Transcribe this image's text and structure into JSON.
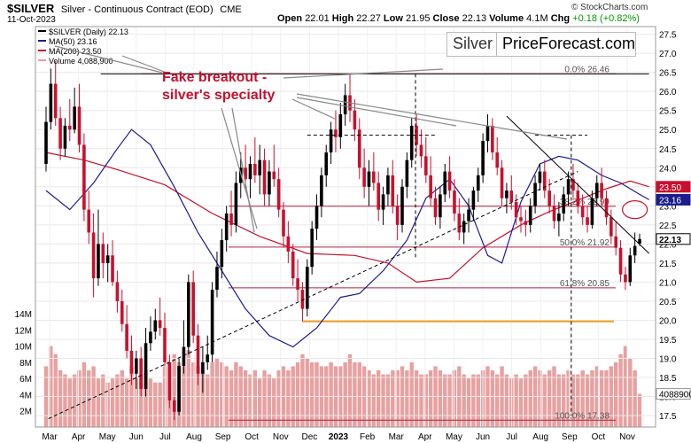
{
  "header": {
    "ticker": "$SILVER",
    "description": "Silver - Continuous Contract (EOD)",
    "exchange": "CME",
    "date": "11-Oct-2023",
    "open_label": "Open",
    "open": "22.01",
    "high_label": "High",
    "high": "22.27",
    "low_label": "Low",
    "low": "21.95",
    "close_label": "Close",
    "close": "22.13",
    "volume_label": "Volume",
    "volume": "4.1M",
    "chg_label": "Chg",
    "chg": "+0.18 (+0.82%)",
    "copyright": "© StockCharts.com"
  },
  "legend": {
    "price": "$SILVER (Daily) 22.13",
    "ma50": "MA(50) 23.16",
    "ma200": "MA(200) 23.50",
    "volume": "Volume 4,088,900"
  },
  "brand": {
    "left": "Silver",
    "right": "PriceForecast.com"
  },
  "annotation": {
    "line1": "Fake breakout -",
    "line2": "silver's specialty"
  },
  "colors": {
    "up": "#000000",
    "down": "#c8102e",
    "ma50": "#1c1c8c",
    "ma200": "#c8102e",
    "volume": "#e8a0a0",
    "annotation": "#c8102e",
    "support": "#f0a020"
  },
  "chart_data": {
    "type": "candlestick",
    "x_tick_labels": [
      "Mar",
      "Apr",
      "May",
      "Jun",
      "Jul",
      "Aug",
      "Sep",
      "Oct",
      "Nov",
      "Dec",
      "2023",
      "Feb",
      "Mar",
      "Apr",
      "May",
      "Jun",
      "Jul",
      "Aug",
      "Sep",
      "Oct",
      "Nov"
    ],
    "y_range": [
      17.2,
      27.7
    ],
    "y_ticks": [
      17.5,
      18.0,
      18.5,
      19.0,
      19.5,
      20.0,
      20.5,
      21.0,
      21.5,
      22.0,
      22.5,
      23.0,
      23.5,
      24.0,
      24.5,
      25.0,
      25.5,
      26.0,
      26.5,
      27.0,
      27.5
    ],
    "volume_ticks": [
      "2M",
      "4M",
      "6M",
      "8M",
      "10M",
      "12M",
      "14M"
    ],
    "last_price": 22.13,
    "price_tags": [
      {
        "label": "23.50",
        "value": 23.5
      },
      {
        "label": "23.16",
        "value": 23.16
      },
      {
        "label": "22.13",
        "value": 22.13
      },
      {
        "label": "4088900",
        "value": 4088900
      }
    ],
    "fib_levels": [
      {
        "label": "0.0% 26.46",
        "value": 26.46
      },
      {
        "label": "38.2% 22.99",
        "value": 22.99
      },
      {
        "label": "50.0% 21.92",
        "value": 21.92
      },
      {
        "label": "61.8% 20.85",
        "value": 20.85
      },
      {
        "label": "100.0% 17.38",
        "value": 17.38
      }
    ],
    "support_line": 19.97,
    "ma50_points": [
      [
        0,
        23.4
      ],
      [
        5,
        22.9
      ],
      [
        10,
        23.6
      ],
      [
        15,
        24.5
      ],
      [
        18,
        25.0
      ],
      [
        22,
        24.6
      ],
      [
        27,
        23.5
      ],
      [
        32,
        22.3
      ],
      [
        37,
        21.3
      ],
      [
        42,
        20.3
      ],
      [
        47,
        19.6
      ],
      [
        52,
        19.3
      ],
      [
        57,
        19.8
      ],
      [
        62,
        20.6
      ],
      [
        66,
        20.7
      ],
      [
        71,
        21.3
      ],
      [
        76,
        22.1
      ],
      [
        80,
        23.2
      ],
      [
        85,
        23.7
      ],
      [
        89,
        23.0
      ],
      [
        93,
        21.7
      ],
      [
        96,
        21.5
      ],
      [
        100,
        23.1
      ],
      [
        104,
        24.1
      ],
      [
        108,
        24.3
      ],
      [
        112,
        24.2
      ],
      [
        117,
        23.8
      ],
      [
        121,
        23.6
      ],
      [
        125,
        23.3
      ],
      [
        127,
        23.16
      ]
    ],
    "ma200_points": [
      [
        0,
        24.4
      ],
      [
        8,
        24.2
      ],
      [
        15,
        23.95
      ],
      [
        25,
        23.55
      ],
      [
        35,
        22.8
      ],
      [
        45,
        22.2
      ],
      [
        55,
        21.75
      ],
      [
        65,
        21.7
      ],
      [
        72,
        21.5
      ],
      [
        78,
        21.0
      ],
      [
        85,
        21.1
      ],
      [
        92,
        21.9
      ],
      [
        100,
        22.5
      ],
      [
        106,
        22.85
      ],
      [
        112,
        23.15
      ],
      [
        118,
        23.45
      ],
      [
        123,
        23.65
      ],
      [
        127,
        23.5
      ]
    ],
    "trend_lines": [
      {
        "points": [
          [
            0.5,
            17.42
          ],
          [
            112,
            23.9
          ]
        ],
        "dashed": true
      },
      {
        "points": [
          [
            97,
            25.35
          ],
          [
            127,
            21.75
          ]
        ],
        "dashed": false
      },
      {
        "points": [
          [
            55,
            24.85
          ],
          [
            82,
            24.85
          ]
        ],
        "dashed": true
      },
      {
        "points": [
          [
            103,
            24.85
          ],
          [
            114,
            24.85
          ]
        ],
        "dashed": true
      },
      {
        "points": [
          [
            11.5,
            26.46
          ],
          [
            127,
            26.46
          ]
        ],
        "dashed": false
      }
    ],
    "vertical_dashed": [
      {
        "x": 77.8,
        "from": 21.6,
        "to": 26.46
      },
      {
        "x": 110.6,
        "from": 17.5,
        "to": 24.85
      }
    ],
    "candles": [
      {
        "o": 24.1,
        "h": 25.6,
        "l": 23.9,
        "c": 25.2,
        "v": 7.5
      },
      {
        "o": 25.2,
        "h": 26.6,
        "l": 25.0,
        "c": 26.2,
        "v": 10
      },
      {
        "o": 26.2,
        "h": 26.8,
        "l": 25.1,
        "c": 25.3,
        "v": 9
      },
      {
        "o": 25.3,
        "h": 25.6,
        "l": 24.2,
        "c": 24.5,
        "v": 7
      },
      {
        "o": 24.5,
        "h": 25.3,
        "l": 24.3,
        "c": 25.1,
        "v": 6.5
      },
      {
        "o": 25.1,
        "h": 25.8,
        "l": 24.7,
        "c": 25.0,
        "v": 6
      },
      {
        "o": 25.0,
        "h": 26.1,
        "l": 24.9,
        "c": 25.6,
        "v": 6.5
      },
      {
        "o": 25.6,
        "h": 26.2,
        "l": 24.4,
        "c": 24.6,
        "v": 7
      },
      {
        "o": 24.6,
        "h": 24.9,
        "l": 22.6,
        "c": 22.9,
        "v": 8
      },
      {
        "o": 22.9,
        "h": 23.4,
        "l": 22.0,
        "c": 22.3,
        "v": 7
      },
      {
        "o": 22.3,
        "h": 22.8,
        "l": 20.6,
        "c": 21.1,
        "v": 7.5
      },
      {
        "o": 21.1,
        "h": 22.9,
        "l": 20.9,
        "c": 22.0,
        "v": 6
      },
      {
        "o": 22.0,
        "h": 22.3,
        "l": 21.1,
        "c": 21.5,
        "v": 6.5
      },
      {
        "o": 21.5,
        "h": 22.0,
        "l": 21.0,
        "c": 21.7,
        "v": 5.5
      },
      {
        "o": 21.7,
        "h": 22.1,
        "l": 20.9,
        "c": 21.0,
        "v": 6
      },
      {
        "o": 21.0,
        "h": 21.3,
        "l": 20.2,
        "c": 20.5,
        "v": 6.5
      },
      {
        "o": 20.5,
        "h": 20.8,
        "l": 19.7,
        "c": 19.9,
        "v": 7
      },
      {
        "o": 19.9,
        "h": 20.4,
        "l": 19.0,
        "c": 19.2,
        "v": 6
      },
      {
        "o": 19.2,
        "h": 19.6,
        "l": 18.3,
        "c": 18.6,
        "v": 7.5
      },
      {
        "o": 18.6,
        "h": 19.2,
        "l": 18.2,
        "c": 19.0,
        "v": 6
      },
      {
        "o": 19.0,
        "h": 19.3,
        "l": 18.0,
        "c": 18.2,
        "v": 6.5
      },
      {
        "o": 18.2,
        "h": 19.8,
        "l": 18.0,
        "c": 19.4,
        "v": 7
      },
      {
        "o": 19.4,
        "h": 20.1,
        "l": 19.2,
        "c": 19.7,
        "v": 6
      },
      {
        "o": 19.7,
        "h": 20.3,
        "l": 19.5,
        "c": 20.0,
        "v": 5.5
      },
      {
        "o": 20.0,
        "h": 20.6,
        "l": 19.6,
        "c": 19.8,
        "v": 5.5
      },
      {
        "o": 19.8,
        "h": 20.2,
        "l": 18.8,
        "c": 18.9,
        "v": 7.5
      },
      {
        "o": 18.9,
        "h": 19.1,
        "l": 17.7,
        "c": 17.9,
        "v": 8
      },
      {
        "o": 17.9,
        "h": 18.0,
        "l": 17.38,
        "c": 17.6,
        "v": 9
      },
      {
        "o": 17.6,
        "h": 19.0,
        "l": 17.5,
        "c": 18.8,
        "v": 8
      },
      {
        "o": 18.8,
        "h": 20.0,
        "l": 18.6,
        "c": 19.3,
        "v": 7.5
      },
      {
        "o": 19.3,
        "h": 21.2,
        "l": 19.1,
        "c": 21.0,
        "v": 9.5
      },
      {
        "o": 21.0,
        "h": 21.3,
        "l": 19.4,
        "c": 19.6,
        "v": 8
      },
      {
        "o": 19.6,
        "h": 19.9,
        "l": 18.3,
        "c": 18.6,
        "v": 7.5
      },
      {
        "o": 18.6,
        "h": 19.3,
        "l": 18.1,
        "c": 18.9,
        "v": 7
      },
      {
        "o": 18.9,
        "h": 19.6,
        "l": 18.7,
        "c": 19.1,
        "v": 6.5
      },
      {
        "o": 19.1,
        "h": 21.0,
        "l": 18.9,
        "c": 20.8,
        "v": 8
      },
      {
        "o": 20.8,
        "h": 21.8,
        "l": 20.6,
        "c": 21.4,
        "v": 8.5
      },
      {
        "o": 21.4,
        "h": 22.4,
        "l": 21.1,
        "c": 22.1,
        "v": 8
      },
      {
        "o": 22.1,
        "h": 23.0,
        "l": 21.8,
        "c": 22.8,
        "v": 7.5
      },
      {
        "o": 22.8,
        "h": 23.4,
        "l": 22.2,
        "c": 22.5,
        "v": 7
      },
      {
        "o": 22.5,
        "h": 23.9,
        "l": 22.3,
        "c": 23.6,
        "v": 8
      },
      {
        "o": 23.6,
        "h": 24.4,
        "l": 23.2,
        "c": 24.0,
        "v": 7.5
      },
      {
        "o": 24.0,
        "h": 24.6,
        "l": 23.4,
        "c": 23.7,
        "v": 7
      },
      {
        "o": 23.7,
        "h": 24.3,
        "l": 23.2,
        "c": 24.1,
        "v": 6.5
      },
      {
        "o": 24.1,
        "h": 24.8,
        "l": 23.6,
        "c": 23.8,
        "v": 7
      },
      {
        "o": 23.8,
        "h": 24.6,
        "l": 23.3,
        "c": 24.2,
        "v": 6
      },
      {
        "o": 24.2,
        "h": 24.5,
        "l": 23.0,
        "c": 23.3,
        "v": 7
      },
      {
        "o": 23.3,
        "h": 24.2,
        "l": 23.0,
        "c": 23.9,
        "v": 6.5
      },
      {
        "o": 23.9,
        "h": 24.6,
        "l": 23.5,
        "c": 23.7,
        "v": 6
      },
      {
        "o": 23.7,
        "h": 24.0,
        "l": 22.7,
        "c": 22.9,
        "v": 7
      },
      {
        "o": 22.9,
        "h": 23.1,
        "l": 21.9,
        "c": 22.2,
        "v": 7.5
      },
      {
        "o": 22.2,
        "h": 22.6,
        "l": 21.5,
        "c": 21.8,
        "v": 7
      },
      {
        "o": 21.8,
        "h": 22.0,
        "l": 20.9,
        "c": 21.1,
        "v": 7.5
      },
      {
        "o": 21.1,
        "h": 21.6,
        "l": 20.5,
        "c": 20.8,
        "v": 8
      },
      {
        "o": 20.8,
        "h": 21.0,
        "l": 19.97,
        "c": 20.3,
        "v": 9
      },
      {
        "o": 20.3,
        "h": 21.6,
        "l": 20.1,
        "c": 21.4,
        "v": 8.5
      },
      {
        "o": 21.4,
        "h": 22.6,
        "l": 21.2,
        "c": 22.4,
        "v": 8
      },
      {
        "o": 22.4,
        "h": 23.3,
        "l": 22.1,
        "c": 23.0,
        "v": 8
      },
      {
        "o": 23.0,
        "h": 24.0,
        "l": 22.7,
        "c": 23.8,
        "v": 7.5
      },
      {
        "o": 23.8,
        "h": 24.6,
        "l": 23.5,
        "c": 24.4,
        "v": 7.5
      },
      {
        "o": 24.4,
        "h": 25.2,
        "l": 24.1,
        "c": 25.0,
        "v": 8
      },
      {
        "o": 25.0,
        "h": 25.5,
        "l": 24.4,
        "c": 24.8,
        "v": 7.5
      },
      {
        "o": 24.8,
        "h": 25.7,
        "l": 24.5,
        "c": 25.4,
        "v": 7.5
      },
      {
        "o": 25.4,
        "h": 26.2,
        "l": 25.1,
        "c": 25.9,
        "v": 8
      },
      {
        "o": 25.9,
        "h": 26.46,
        "l": 25.2,
        "c": 25.5,
        "v": 9
      },
      {
        "o": 25.5,
        "h": 25.8,
        "l": 24.7,
        "c": 25.0,
        "v": 8
      },
      {
        "o": 25.0,
        "h": 25.3,
        "l": 23.7,
        "c": 24.0,
        "v": 8
      },
      {
        "o": 24.0,
        "h": 24.5,
        "l": 23.2,
        "c": 23.5,
        "v": 7.5
      },
      {
        "o": 23.5,
        "h": 24.2,
        "l": 23.0,
        "c": 23.9,
        "v": 7
      },
      {
        "o": 23.9,
        "h": 24.4,
        "l": 23.4,
        "c": 23.6,
        "v": 6.5
      },
      {
        "o": 23.6,
        "h": 23.9,
        "l": 22.6,
        "c": 22.9,
        "v": 7
      },
      {
        "o": 22.9,
        "h": 23.5,
        "l": 22.5,
        "c": 23.3,
        "v": 6.5
      },
      {
        "o": 23.3,
        "h": 24.0,
        "l": 23.0,
        "c": 23.8,
        "v": 6.5
      },
      {
        "o": 23.8,
        "h": 24.2,
        "l": 22.8,
        "c": 23.0,
        "v": 7
      },
      {
        "o": 23.0,
        "h": 23.3,
        "l": 22.1,
        "c": 22.5,
        "v": 7
      },
      {
        "o": 22.5,
        "h": 23.7,
        "l": 22.3,
        "c": 23.5,
        "v": 7.5
      },
      {
        "o": 23.5,
        "h": 24.4,
        "l": 23.2,
        "c": 24.2,
        "v": 7
      },
      {
        "o": 24.2,
        "h": 25.3,
        "l": 24.0,
        "c": 25.1,
        "v": 8
      },
      {
        "o": 25.1,
        "h": 25.4,
        "l": 24.3,
        "c": 24.6,
        "v": 7
      },
      {
        "o": 24.6,
        "h": 25.0,
        "l": 24.0,
        "c": 24.3,
        "v": 6.5
      },
      {
        "o": 24.3,
        "h": 24.8,
        "l": 23.6,
        "c": 23.8,
        "v": 6.5
      },
      {
        "o": 23.8,
        "h": 24.3,
        "l": 23.0,
        "c": 23.2,
        "v": 7
      },
      {
        "o": 23.2,
        "h": 23.5,
        "l": 22.5,
        "c": 22.7,
        "v": 7.5
      },
      {
        "o": 22.7,
        "h": 23.5,
        "l": 22.4,
        "c": 23.3,
        "v": 7
      },
      {
        "o": 23.3,
        "h": 24.1,
        "l": 23.1,
        "c": 23.9,
        "v": 6.5
      },
      {
        "o": 23.9,
        "h": 24.3,
        "l": 23.2,
        "c": 23.4,
        "v": 6.5
      },
      {
        "o": 23.4,
        "h": 23.7,
        "l": 22.6,
        "c": 22.8,
        "v": 7
      },
      {
        "o": 22.8,
        "h": 23.2,
        "l": 22.1,
        "c": 22.3,
        "v": 7.5
      },
      {
        "o": 22.3,
        "h": 22.8,
        "l": 22.0,
        "c": 22.6,
        "v": 6.5
      },
      {
        "o": 22.6,
        "h": 23.2,
        "l": 22.3,
        "c": 22.9,
        "v": 6
      },
      {
        "o": 22.9,
        "h": 23.5,
        "l": 22.6,
        "c": 23.4,
        "v": 6.5
      },
      {
        "o": 23.4,
        "h": 24.0,
        "l": 23.1,
        "c": 23.8,
        "v": 6.5
      },
      {
        "o": 23.8,
        "h": 24.9,
        "l": 23.6,
        "c": 24.7,
        "v": 7
      },
      {
        "o": 24.7,
        "h": 25.4,
        "l": 24.4,
        "c": 25.1,
        "v": 7.5
      },
      {
        "o": 25.1,
        "h": 25.3,
        "l": 24.2,
        "c": 24.4,
        "v": 7
      },
      {
        "o": 24.4,
        "h": 24.8,
        "l": 23.8,
        "c": 24.0,
        "v": 6.5
      },
      {
        "o": 24.0,
        "h": 24.2,
        "l": 23.0,
        "c": 23.2,
        "v": 7.5
      },
      {
        "o": 23.2,
        "h": 23.6,
        "l": 22.8,
        "c": 23.4,
        "v": 6.5
      },
      {
        "o": 23.4,
        "h": 23.8,
        "l": 22.9,
        "c": 23.1,
        "v": 6
      },
      {
        "o": 23.1,
        "h": 23.3,
        "l": 22.5,
        "c": 22.7,
        "v": 6.5
      },
      {
        "o": 22.7,
        "h": 23.0,
        "l": 22.3,
        "c": 22.6,
        "v": 6
      },
      {
        "o": 22.6,
        "h": 22.9,
        "l": 22.2,
        "c": 22.5,
        "v": 6.5
      },
      {
        "o": 22.5,
        "h": 23.2,
        "l": 22.3,
        "c": 23.0,
        "v": 7
      },
      {
        "o": 23.0,
        "h": 23.8,
        "l": 22.8,
        "c": 23.6,
        "v": 7.5
      },
      {
        "o": 23.6,
        "h": 24.1,
        "l": 23.4,
        "c": 23.9,
        "v": 7
      },
      {
        "o": 23.9,
        "h": 24.2,
        "l": 23.2,
        "c": 23.4,
        "v": 6.5
      },
      {
        "o": 23.4,
        "h": 23.7,
        "l": 22.8,
        "c": 23.0,
        "v": 7
      },
      {
        "o": 23.0,
        "h": 23.3,
        "l": 22.4,
        "c": 22.6,
        "v": 7.5
      },
      {
        "o": 22.6,
        "h": 23.1,
        "l": 22.2,
        "c": 22.8,
        "v": 6.5
      },
      {
        "o": 22.8,
        "h": 23.5,
        "l": 22.6,
        "c": 23.3,
        "v": 6.5
      },
      {
        "o": 23.3,
        "h": 23.9,
        "l": 23.0,
        "c": 23.7,
        "v": 7
      },
      {
        "o": 23.7,
        "h": 24.1,
        "l": 23.2,
        "c": 23.4,
        "v": 6.5
      },
      {
        "o": 23.4,
        "h": 23.6,
        "l": 22.8,
        "c": 23.0,
        "v": 6.5
      },
      {
        "o": 23.0,
        "h": 23.3,
        "l": 22.5,
        "c": 22.7,
        "v": 7
      },
      {
        "o": 22.7,
        "h": 23.0,
        "l": 22.3,
        "c": 22.5,
        "v": 6.5
      },
      {
        "o": 22.5,
        "h": 23.4,
        "l": 22.4,
        "c": 23.2,
        "v": 7
      },
      {
        "o": 23.2,
        "h": 23.8,
        "l": 23.0,
        "c": 23.6,
        "v": 7.5
      },
      {
        "o": 23.6,
        "h": 24.0,
        "l": 23.0,
        "c": 23.2,
        "v": 7
      },
      {
        "o": 23.2,
        "h": 23.4,
        "l": 22.5,
        "c": 22.7,
        "v": 7
      },
      {
        "o": 22.7,
        "h": 22.9,
        "l": 22.0,
        "c": 22.2,
        "v": 7.5
      },
      {
        "o": 22.2,
        "h": 22.6,
        "l": 21.7,
        "c": 21.9,
        "v": 8
      },
      {
        "o": 21.9,
        "h": 22.1,
        "l": 21.0,
        "c": 21.2,
        "v": 9
      },
      {
        "o": 21.2,
        "h": 21.4,
        "l": 20.8,
        "c": 21.0,
        "v": 10
      },
      {
        "o": 21.0,
        "h": 21.9,
        "l": 20.9,
        "c": 21.7,
        "v": 8.5
      },
      {
        "o": 21.7,
        "h": 22.3,
        "l": 21.5,
        "c": 21.95,
        "v": 7
      },
      {
        "o": 22.01,
        "h": 22.27,
        "l": 21.95,
        "c": 22.13,
        "v": 4.1
      }
    ]
  }
}
